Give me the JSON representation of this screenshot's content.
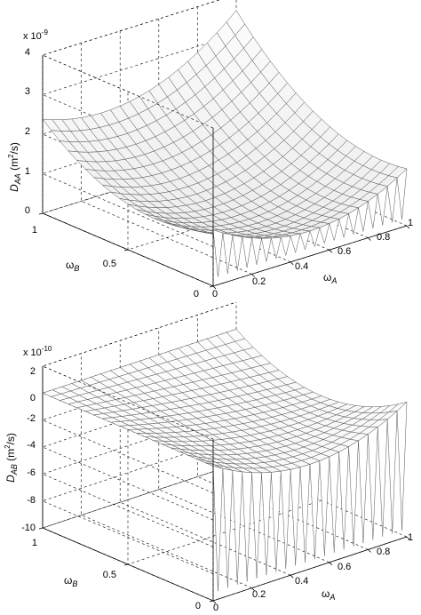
{
  "chart_data": [
    {
      "type": "surface",
      "zlabel": "D_AA (m²/s)",
      "zlabel_main": "D",
      "zlabel_sub": "AA",
      "zlabel_units_a": " (m",
      "zlabel_units_sup": "2",
      "zlabel_units_b": "/s)",
      "xlabel_main": "ω",
      "xlabel_sub": "A",
      "ylabel_main": "ω",
      "ylabel_sub": "B",
      "multiplier_base": "x 10",
      "multiplier_exp": "-9",
      "x_ticks": [
        "0.2",
        "0.4",
        "0.6",
        "0.8",
        "1"
      ],
      "y_ticks": [
        "0",
        "0.5",
        "1"
      ],
      "z_ticks": [
        "0",
        "1",
        "2",
        "3",
        "4"
      ],
      "x_corner_tick": "0",
      "xlim": [
        0,
        1
      ],
      "ylim": [
        0,
        1
      ],
      "zlim": [
        0,
        4
      ],
      "grid": true,
      "surface_samples": {
        "description_free": true,
        "corner_values": {
          "wA0_wB0": 0.3,
          "wA1_wB0": 2.6,
          "wA0_wB1": 2.7,
          "min_value": 0.2
        }
      }
    },
    {
      "type": "surface",
      "zlabel_main": "D",
      "zlabel_sub": "AB",
      "zlabel_units_a": " (m",
      "zlabel_units_sup": "2",
      "zlabel_units_b": "/s)",
      "xlabel_main": "ω",
      "xlabel_sub": "A",
      "ylabel_main": "ω",
      "ylabel_sub": "B",
      "multiplier_base": "x 10",
      "multiplier_exp": "-10",
      "x_ticks": [
        "0.2",
        "0.4",
        "0.6",
        "0.8",
        "1"
      ],
      "y_ticks": [
        "0",
        "0.5",
        "1"
      ],
      "z_ticks": [
        "-10",
        "-8",
        "-6",
        "-4",
        "-2",
        "0",
        "2"
      ],
      "x_corner_tick": "0",
      "xlim": [
        0,
        1
      ],
      "ylim": [
        0,
        1
      ],
      "zlim": [
        -10,
        2
      ],
      "grid": true,
      "surface_samples": {
        "corner_values": {
          "wA0_wB0": 0.0,
          "wA1_wB1": 0.0,
          "min_value": -9.0
        }
      }
    }
  ]
}
